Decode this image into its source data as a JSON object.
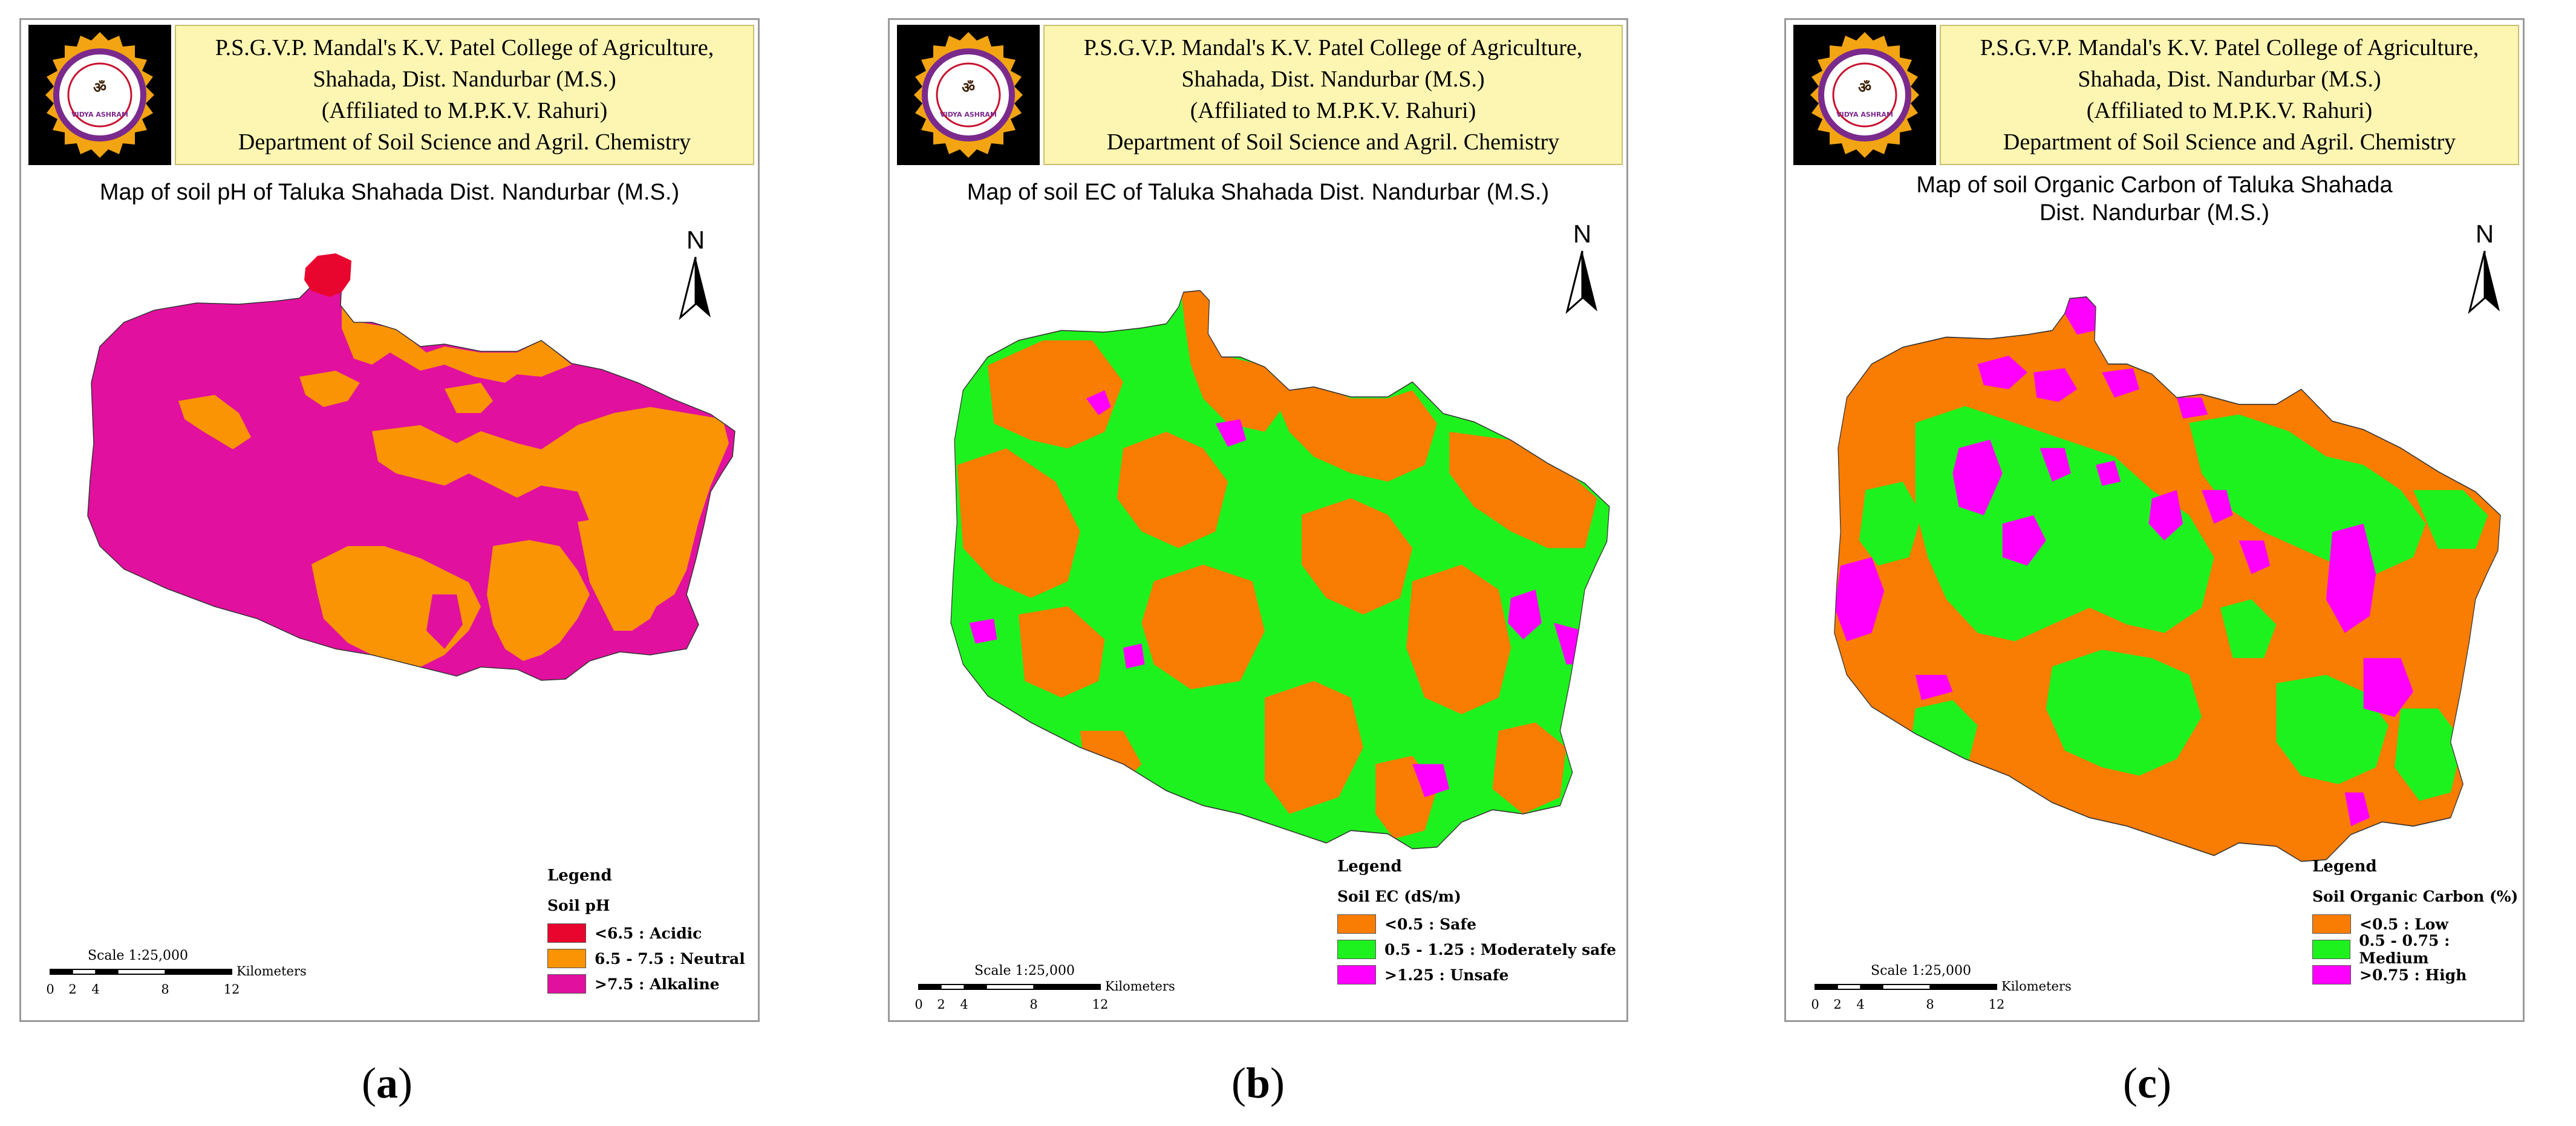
{
  "header": {
    "lines": [
      "P.S.G.V.P. Mandal's K.V. Patel College of Agriculture,",
      "Shahada, Dist. Nandurbar (M.S.)",
      "(Affiliated to M.P.K.V. Rahuri)",
      "Department of Soil Science and Agril. Chemistry"
    ],
    "logo_text": "VIDYA ASHRAM"
  },
  "north_label": "N",
  "scale": {
    "label": "Scale 1:25,000",
    "ticks": [
      "0",
      "2",
      "4",
      "8",
      "12"
    ],
    "unit": "Kilometers"
  },
  "legend_heading": "Legend",
  "colors": {
    "red": "#e8062e",
    "orange": "#fa9405",
    "magenta": "#e2109e",
    "dark_orange": "#f97c03",
    "green": "#1ef21e",
    "pink": "#ff00ff"
  },
  "panels": [
    {
      "title": "Map of soil pH of Taluka Shahada Dist. Nandurbar (M.S.)",
      "legend_title": "Soil pH",
      "legend_items": [
        {
          "label": "<6.5 : Acidic",
          "color": "#e8062e"
        },
        {
          "label": "6.5 - 7.5 : Neutral",
          "color": "#fa9405"
        },
        {
          "label": ">7.5 : Alkaline",
          "color": "#e2109e"
        }
      ],
      "caption": "a"
    },
    {
      "title": "Map of soil EC of Taluka Shahada Dist. Nandurbar (M.S.)",
      "legend_title": "Soil EC (dS/m)",
      "legend_items": [
        {
          "label": "<0.5 : Safe",
          "color": "#f97c03"
        },
        {
          "label": "0.5 - 1.25 : Moderately safe",
          "color": "#1ef21e"
        },
        {
          "label": ">1.25 : Unsafe",
          "color": "#ff00ff"
        }
      ],
      "caption": "b"
    },
    {
      "title_line1": "Map of soil Organic Carbon of Taluka Shahada",
      "title_line2": "Dist. Nandurbar (M.S.)",
      "legend_title": "Soil Organic Carbon (%)",
      "legend_items": [
        {
          "label": "<0.5 : Low",
          "color": "#f97c03"
        },
        {
          "label": "0.5 - 0.75 : Medium",
          "color": "#1ef21e"
        },
        {
          "label": ">0.75 : High",
          "color": "#ff00ff"
        }
      ],
      "caption": "c"
    }
  ]
}
